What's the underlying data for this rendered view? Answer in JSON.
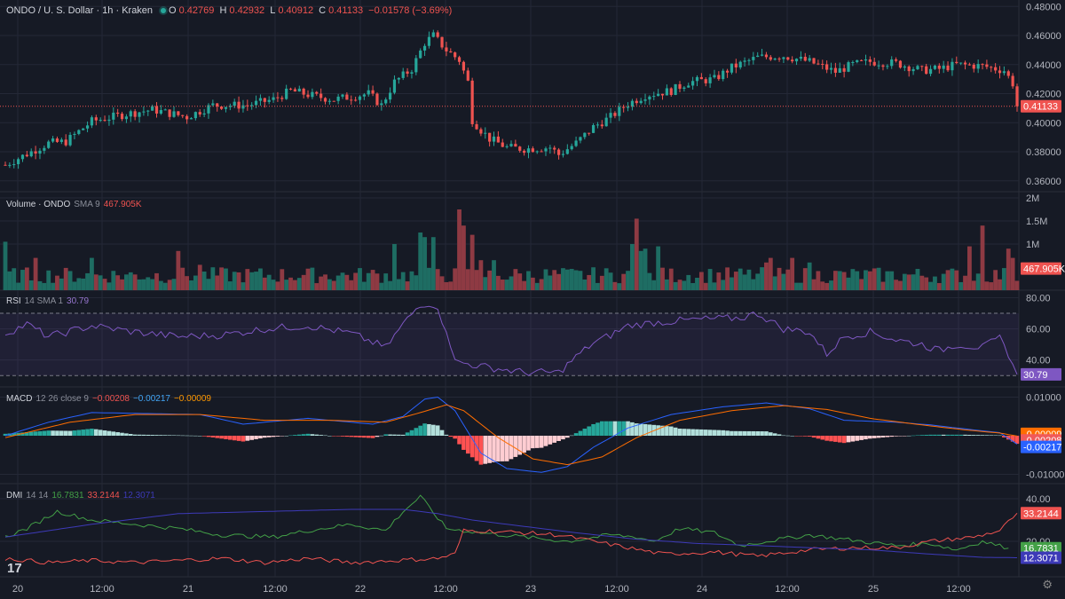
{
  "header": {
    "symbol": "ONDO / U. S. Dollar · 1h · Kraken",
    "o_label": "O",
    "o": "0.42769",
    "h_label": "H",
    "h": "0.42932",
    "l_label": "L",
    "l": "0.40912",
    "c_label": "C",
    "c": "0.41133",
    "change": "−0.01578 (−3.69%)"
  },
  "volume_legend": {
    "name": "Volume · ONDO",
    "params": "SMA 9",
    "value": "467.905K"
  },
  "rsi_legend": {
    "name": "RSI",
    "params": "14 SMA 1",
    "value": "30.79"
  },
  "macd_legend": {
    "name": "MACD",
    "params": "12 26 close 9",
    "v1": "−0.00208",
    "v2": "−0.00217",
    "v3": "−0.00009"
  },
  "dmi_legend": {
    "name": "DMI",
    "params": "14 14",
    "v1": "16.7831",
    "v2": "33.2144",
    "v3": "12.3071"
  },
  "colors": {
    "up": "#26a69a",
    "down": "#ef5350",
    "bg": "#161a25",
    "grid": "#242836",
    "text": "#b2b5be",
    "rsi": "#7e57c2",
    "macd": "#2962ff",
    "signal": "#ff6d00",
    "adx": "#3d3ab8"
  },
  "icons": [
    "tradingview-logo",
    "settings-icon"
  ],
  "chart_data": [
    {
      "type": "candlestick",
      "title": "ONDO / U. S. Dollar · 1h · Kraken",
      "ylim": [
        0.355,
        0.482
      ],
      "y_ticks": [
        "0.48000",
        "0.46000",
        "0.44000",
        "0.42000",
        "0.40000",
        "0.38000",
        "0.36000"
      ],
      "x_ticks": [
        "20",
        "12:00",
        "21",
        "12:00",
        "22",
        "12:00",
        "23",
        "12:00",
        "24",
        "12:00",
        "25",
        "12:00"
      ],
      "last_price_label": "0.41133",
      "anchors": [
        [
          0,
          0.371
        ],
        [
          6,
          0.38
        ],
        [
          10,
          0.386
        ],
        [
          14,
          0.387
        ],
        [
          20,
          0.401
        ],
        [
          28,
          0.406
        ],
        [
          34,
          0.409
        ],
        [
          42,
          0.404
        ],
        [
          48,
          0.412
        ],
        [
          56,
          0.412
        ],
        [
          62,
          0.416
        ],
        [
          66,
          0.422
        ],
        [
          72,
          0.418
        ],
        [
          76,
          0.416
        ],
        [
          80,
          0.418
        ],
        [
          84,
          0.42
        ],
        [
          87,
          0.412
        ],
        [
          90,
          0.428
        ],
        [
          94,
          0.437
        ],
        [
          97,
          0.455
        ],
        [
          99,
          0.46
        ],
        [
          102,
          0.45
        ],
        [
          105,
          0.443
        ],
        [
          107,
          0.428
        ],
        [
          108,
          0.402
        ],
        [
          110,
          0.395
        ],
        [
          112,
          0.389
        ],
        [
          116,
          0.383
        ],
        [
          120,
          0.382
        ],
        [
          126,
          0.383
        ],
        [
          128,
          0.378
        ],
        [
          132,
          0.386
        ],
        [
          136,
          0.397
        ],
        [
          140,
          0.404
        ],
        [
          144,
          0.413
        ],
        [
          148,
          0.419
        ],
        [
          154,
          0.422
        ],
        [
          158,
          0.428
        ],
        [
          164,
          0.43
        ],
        [
          168,
          0.438
        ],
        [
          174,
          0.445
        ],
        [
          180,
          0.446
        ],
        [
          186,
          0.442
        ],
        [
          192,
          0.435
        ],
        [
          196,
          0.44
        ],
        [
          200,
          0.442
        ],
        [
          206,
          0.441
        ],
        [
          212,
          0.436
        ],
        [
          216,
          0.437
        ],
        [
          220,
          0.44
        ],
        [
          226,
          0.439
        ],
        [
          231,
          0.436
        ],
        [
          233,
          0.427
        ],
        [
          234,
          0.41133
        ]
      ]
    },
    {
      "type": "bar",
      "title": "Volume · ONDO SMA 9",
      "ylim": [
        0,
        2000000
      ],
      "y_ticks": [
        "2M",
        "1.5M",
        "1M"
      ],
      "last_value_label": "467.905K",
      "spikes": [
        [
          0,
          1050000
        ],
        [
          7,
          700000
        ],
        [
          20,
          700000
        ],
        [
          40,
          850000
        ],
        [
          45,
          550000
        ],
        [
          90,
          1000000
        ],
        [
          96,
          1250000
        ],
        [
          97,
          1150000
        ],
        [
          99,
          1150000
        ],
        [
          105,
          1750000
        ],
        [
          106,
          1400000
        ],
        [
          108,
          1200000
        ],
        [
          110,
          650000
        ],
        [
          113,
          650000
        ],
        [
          145,
          1000000
        ],
        [
          146,
          1550000
        ],
        [
          147,
          850000
        ],
        [
          148,
          900000
        ],
        [
          151,
          950000
        ],
        [
          176,
          600000
        ],
        [
          177,
          700000
        ],
        [
          182,
          700000
        ],
        [
          186,
          600000
        ],
        [
          223,
          950000
        ],
        [
          226,
          1400000
        ],
        [
          232,
          900000
        ],
        [
          233,
          700000
        ]
      ]
    },
    {
      "type": "line",
      "title": "RSI 14 SMA 1",
      "ylim": [
        25,
        82
      ],
      "y_ticks": [
        "80.00",
        "60.00",
        "40.00"
      ],
      "bands": [
        30,
        70
      ],
      "last_value_label": "30.79",
      "anchors": [
        [
          0,
          57
        ],
        [
          5,
          63
        ],
        [
          10,
          55
        ],
        [
          20,
          62
        ],
        [
          30,
          58
        ],
        [
          40,
          55
        ],
        [
          50,
          56
        ],
        [
          60,
          60
        ],
        [
          70,
          62
        ],
        [
          80,
          57
        ],
        [
          88,
          48
        ],
        [
          92,
          63
        ],
        [
          96,
          76
        ],
        [
          99,
          76
        ],
        [
          102,
          60
        ],
        [
          104,
          39
        ],
        [
          110,
          36
        ],
        [
          120,
          32
        ],
        [
          128,
          32
        ],
        [
          132,
          42
        ],
        [
          136,
          51
        ],
        [
          140,
          56
        ],
        [
          144,
          62
        ],
        [
          150,
          64
        ],
        [
          160,
          66
        ],
        [
          170,
          67
        ],
        [
          174,
          70
        ],
        [
          180,
          60
        ],
        [
          186,
          58
        ],
        [
          190,
          44
        ],
        [
          194,
          55
        ],
        [
          200,
          58
        ],
        [
          206,
          53
        ],
        [
          212,
          50
        ],
        [
          216,
          46
        ],
        [
          220,
          50
        ],
        [
          226,
          48
        ],
        [
          230,
          54
        ],
        [
          232,
          44
        ],
        [
          234,
          30.79
        ]
      ]
    },
    {
      "type": "line",
      "title": "MACD 12 26 close 9",
      "ylim": [
        -0.0115,
        0.0115
      ],
      "y_ticks": [
        "0.01000",
        "-0.01000"
      ],
      "last_value_labels": [
        "-0.00009",
        "-0.00208",
        "-0.00217"
      ],
      "series": [
        {
          "name": "MACD",
          "anchors": [
            [
              0,
              0.0
            ],
            [
              10,
              0.0035
            ],
            [
              20,
              0.006
            ],
            [
              30,
              0.0058
            ],
            [
              45,
              0.0055
            ],
            [
              55,
              0.003
            ],
            [
              70,
              0.0045
            ],
            [
              85,
              0.003
            ],
            [
              92,
              0.005
            ],
            [
              97,
              0.0095
            ],
            [
              100,
              0.01
            ],
            [
              104,
              0.0065
            ],
            [
              110,
              -0.0045
            ],
            [
              116,
              -0.0085
            ],
            [
              124,
              -0.0095
            ],
            [
              130,
              -0.008
            ],
            [
              136,
              -0.003
            ],
            [
              144,
              0.002
            ],
            [
              154,
              0.0055
            ],
            [
              166,
              0.0075
            ],
            [
              176,
              0.0085
            ],
            [
              186,
              0.007
            ],
            [
              194,
              0.004
            ],
            [
              206,
              0.0035
            ],
            [
              214,
              0.0028
            ],
            [
              224,
              0.0015
            ],
            [
              230,
              0.0008
            ],
            [
              234,
              -0.00217
            ]
          ]
        },
        {
          "name": "Signal",
          "anchors": [
            [
              0,
              -0.0005
            ],
            [
              15,
              0.0035
            ],
            [
              30,
              0.0055
            ],
            [
              45,
              0.0055
            ],
            [
              60,
              0.004
            ],
            [
              75,
              0.004
            ],
            [
              88,
              0.0035
            ],
            [
              96,
              0.006
            ],
            [
              102,
              0.008
            ],
            [
              106,
              0.0065
            ],
            [
              114,
              -0.0005
            ],
            [
              122,
              -0.006
            ],
            [
              130,
              -0.0075
            ],
            [
              138,
              -0.0055
            ],
            [
              146,
              -0.0005
            ],
            [
              156,
              0.004
            ],
            [
              168,
              0.0065
            ],
            [
              180,
              0.0078
            ],
            [
              190,
              0.0068
            ],
            [
              200,
              0.0045
            ],
            [
              212,
              0.0028
            ],
            [
              222,
              0.0015
            ],
            [
              230,
              0.0007
            ],
            [
              234,
              -9e-05
            ]
          ]
        }
      ]
    },
    {
      "type": "line",
      "title": "DMI 14 14",
      "ylim": [
        5,
        45
      ],
      "y_ticks": [
        "40.00",
        "20.00"
      ],
      "last_value_labels": [
        "33.2144",
        "16.7831",
        "12.3071"
      ],
      "series": [
        {
          "name": "+DI",
          "anchors": [
            [
              0,
              22
            ],
            [
              5,
              26
            ],
            [
              12,
              34
            ],
            [
              20,
              30
            ],
            [
              30,
              28
            ],
            [
              40,
              26
            ],
            [
              50,
              23
            ],
            [
              62,
              22
            ],
            [
              70,
              25
            ],
            [
              80,
              28
            ],
            [
              88,
              25
            ],
            [
              92,
              34
            ],
            [
              96,
              41
            ],
            [
              102,
              26
            ],
            [
              110,
              24
            ],
            [
              120,
              22
            ],
            [
              130,
              20
            ],
            [
              140,
              23
            ],
            [
              146,
              22
            ],
            [
              150,
              20
            ],
            [
              156,
              26
            ],
            [
              164,
              24
            ],
            [
              170,
              18
            ],
            [
              176,
              20
            ],
            [
              186,
              23
            ],
            [
              194,
              21
            ],
            [
              206,
              18
            ],
            [
              214,
              19
            ],
            [
              220,
              16
            ],
            [
              226,
              20
            ],
            [
              232,
              16.7831
            ]
          ]
        },
        {
          "name": "-DI",
          "anchors": [
            [
              0,
              12
            ],
            [
              10,
              10
            ],
            [
              20,
              11
            ],
            [
              30,
              10
            ],
            [
              40,
              11
            ],
            [
              50,
              12
            ],
            [
              60,
              10
            ],
            [
              70,
              12
            ],
            [
              80,
              10
            ],
            [
              90,
              11
            ],
            [
              100,
              12
            ],
            [
              104,
              14
            ],
            [
              106,
              25
            ],
            [
              110,
              25
            ],
            [
              120,
              24
            ],
            [
              128,
              23
            ],
            [
              136,
              20
            ],
            [
              144,
              17
            ],
            [
              152,
              14
            ],
            [
              164,
              15
            ],
            [
              174,
              13
            ],
            [
              186,
              16
            ],
            [
              196,
              17
            ],
            [
              206,
              17
            ],
            [
              214,
              20
            ],
            [
              224,
              22
            ],
            [
              230,
              25
            ],
            [
              234,
              33.2144
            ]
          ]
        },
        {
          "name": "ADX",
          "anchors": [
            [
              0,
              22
            ],
            [
              20,
              28
            ],
            [
              40,
              33
            ],
            [
              60,
              34
            ],
            [
              80,
              35
            ],
            [
              92,
              35
            ],
            [
              100,
              33
            ],
            [
              108,
              30
            ],
            [
              120,
              27
            ],
            [
              132,
              24
            ],
            [
              146,
              21
            ],
            [
              160,
              19
            ],
            [
              174,
              18
            ],
            [
              186,
              17
            ],
            [
              200,
              16
            ],
            [
              214,
              14
            ],
            [
              226,
              12.5
            ],
            [
              234,
              12.3071
            ]
          ]
        }
      ]
    }
  ]
}
